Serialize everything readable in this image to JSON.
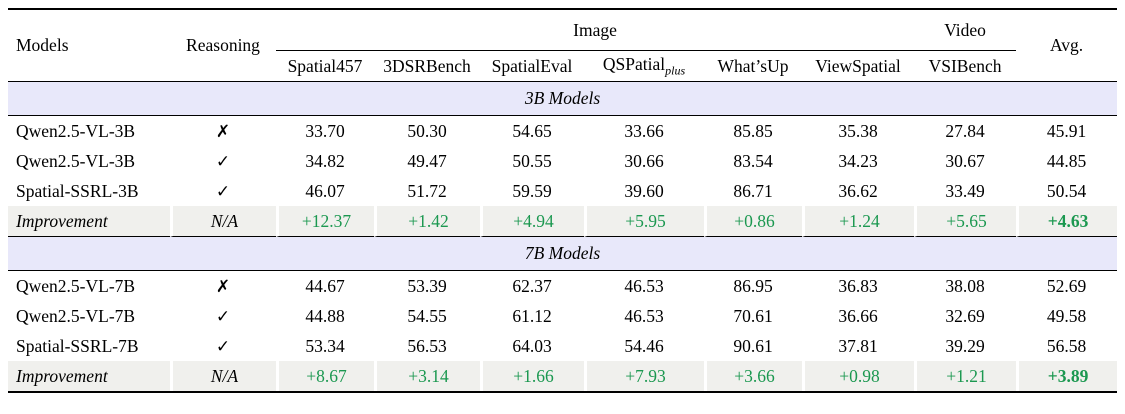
{
  "header": {
    "models": "Models",
    "reasoning": "Reasoning",
    "groups": {
      "image": "Image",
      "video": "Video"
    },
    "avg": "Avg.",
    "subcols": [
      {
        "label": "Spatial457"
      },
      {
        "label": "3DSRBench"
      },
      {
        "label": "SpatialEval"
      },
      {
        "label": "QSPatial",
        "sub": "plus"
      },
      {
        "label": "What’sUp"
      },
      {
        "label": "ViewSpatial"
      },
      {
        "label": "VSIBench"
      }
    ]
  },
  "sections": [
    {
      "title": "3B Models",
      "rows": [
        {
          "model": "Qwen2.5-VL-3B",
          "reasoning": "✗",
          "values": [
            "33.70",
            "50.30",
            "54.65",
            "33.66",
            "85.85",
            "35.38",
            "27.84",
            "45.91"
          ]
        },
        {
          "model": "Qwen2.5-VL-3B",
          "reasoning": "✓",
          "values": [
            "34.82",
            "49.47",
            "50.55",
            "30.66",
            "83.54",
            "34.23",
            "30.67",
            "44.85"
          ]
        },
        {
          "model": "Spatial-SSRL-3B",
          "reasoning": "✓",
          "values": [
            "46.07",
            "51.72",
            "59.59",
            "39.60",
            "86.71",
            "36.62",
            "33.49",
            "50.54"
          ]
        },
        {
          "model": "Improvement",
          "reasoning": "N/A",
          "values": [
            "+12.37",
            "+1.42",
            "+4.94",
            "+5.95",
            "+0.86",
            "+1.24",
            "+5.65",
            "+4.63"
          ]
        }
      ]
    },
    {
      "title": "7B Models",
      "rows": [
        {
          "model": "Qwen2.5-VL-7B",
          "reasoning": "✗",
          "values": [
            "44.67",
            "53.39",
            "62.37",
            "46.53",
            "86.95",
            "36.83",
            "38.08",
            "52.69"
          ]
        },
        {
          "model": "Qwen2.5-VL-7B",
          "reasoning": "✓",
          "values": [
            "44.88",
            "54.55",
            "61.12",
            "46.53",
            "70.61",
            "36.66",
            "32.69",
            "49.58"
          ]
        },
        {
          "model": "Spatial-SSRL-7B",
          "reasoning": "✓",
          "values": [
            "53.34",
            "56.53",
            "64.03",
            "54.46",
            "90.61",
            "37.81",
            "39.29",
            "56.58"
          ]
        },
        {
          "model": "Improvement",
          "reasoning": "N/A",
          "values": [
            "+8.67",
            "+3.14",
            "+1.66",
            "+7.93",
            "+3.66",
            "+0.98",
            "+1.21",
            "+3.89"
          ]
        }
      ]
    }
  ],
  "colors": {
    "section_band": "#e8e8fa",
    "improvement_band": "#f0f0ed",
    "positive_green": "#1b9850"
  }
}
